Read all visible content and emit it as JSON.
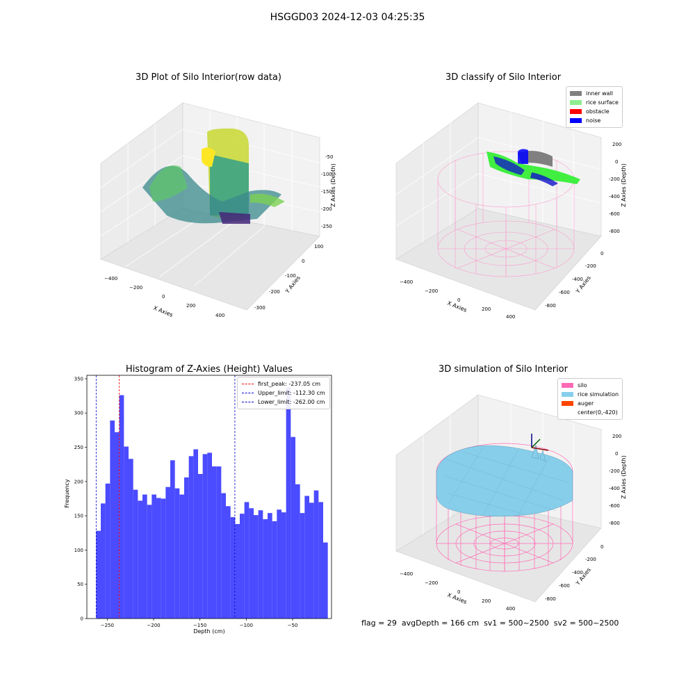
{
  "suptitle": "HSGGD03 2024-12-03 04:25:35",
  "panel1": {
    "title": "3D Plot of Silo Interior(row data)",
    "xlabel": "X Axies",
    "ylabel": "Y Axies",
    "zlabel": "Z Axies (Depth)",
    "xticks": [
      "-400",
      "-200",
      "0",
      "200",
      "400"
    ],
    "yticks": [
      "100",
      "0",
      "-100",
      "-200",
      "-300"
    ],
    "zticks": [
      "-50",
      "-100",
      "-150",
      "-200",
      "-250"
    ]
  },
  "panel2": {
    "title": "3D classify of Silo Interior",
    "xlabel": "X Axies",
    "ylabel": "Y Axies",
    "zlabel": "Z Axies (Depth)",
    "xticks": [
      "-400",
      "-200",
      "0",
      "200",
      "400"
    ],
    "yticks": [
      "0",
      "-200",
      "-400",
      "-600",
      "-800"
    ],
    "zticks": [
      "200",
      "0",
      "-200",
      "-400",
      "-600",
      "-800"
    ],
    "legend": [
      {
        "label": "inner wall",
        "color": "#808080"
      },
      {
        "label": "rice surface",
        "color": "#90ee90"
      },
      {
        "label": "obstacle",
        "color": "#ff0000"
      },
      {
        "label": "noise",
        "color": "#0000ff"
      }
    ]
  },
  "panel4": {
    "title": "3D simulation of Silo Interior",
    "xlabel": "X Axies",
    "ylabel": "Y Axies",
    "zlabel": "Z Axies (Depth)",
    "xticks": [
      "-400",
      "-200",
      "0",
      "200",
      "400"
    ],
    "yticks": [
      "0",
      "-200",
      "-400",
      "-600",
      "-800"
    ],
    "zticks": [
      "200",
      "0",
      "-200",
      "-400",
      "-600",
      "-800"
    ],
    "legend": [
      {
        "label": "silo",
        "color": "#ff69b4"
      },
      {
        "label": "rice simulation",
        "color": "#87ceeb"
      },
      {
        "label": "auger",
        "color": "#ff4500"
      },
      {
        "label": "center(0,-420)",
        "color": "#ffffff"
      }
    ]
  },
  "chart_data": {
    "type": "bar",
    "title": "Histogram of Z-Axies (Height) Values",
    "xlabel": "Depth (cm)",
    "ylabel": "Frequency",
    "xlim": [
      -272,
      -8
    ],
    "ylim": [
      0,
      355
    ],
    "xticks": [
      -250,
      -200,
      -150,
      -100,
      -50
    ],
    "xtick_labels": [
      "−250",
      "−200",
      "−150",
      "−100",
      "−50"
    ],
    "yticks": [
      0,
      50,
      100,
      150,
      200,
      250,
      300,
      350
    ],
    "bar_color": "#4b4bff",
    "bin_start": -262.0,
    "bin_width": 5.0,
    "values": [
      128,
      168,
      197,
      289,
      272,
      326,
      251,
      233,
      188,
      172,
      181,
      166,
      181,
      176,
      175,
      192,
      231,
      190,
      181,
      206,
      237,
      247,
      211,
      240,
      242,
      222,
      222,
      183,
      164,
      148,
      138,
      153,
      170,
      161,
      151,
      158,
      145,
      154,
      142,
      159,
      155,
      337,
      265,
      196,
      154,
      179,
      169,
      187,
      170,
      111
    ],
    "lines": [
      {
        "label": "first_peak: -237.05 cm",
        "x": -237.05,
        "color": "#ff0000"
      },
      {
        "label": "Upper_limit: -112.30 cm",
        "x": -112.3,
        "color": "#0000cc"
      },
      {
        "label": "Lower_limit: -262.00 cm",
        "x": -262.0,
        "color": "#0000cc"
      }
    ]
  },
  "footer": {
    "flag": "flag = 29",
    "avg": "avgDepth = 166 cm",
    "sv1": "sv1 = 500~2500",
    "sv2": "sv2 = 500~2500"
  }
}
